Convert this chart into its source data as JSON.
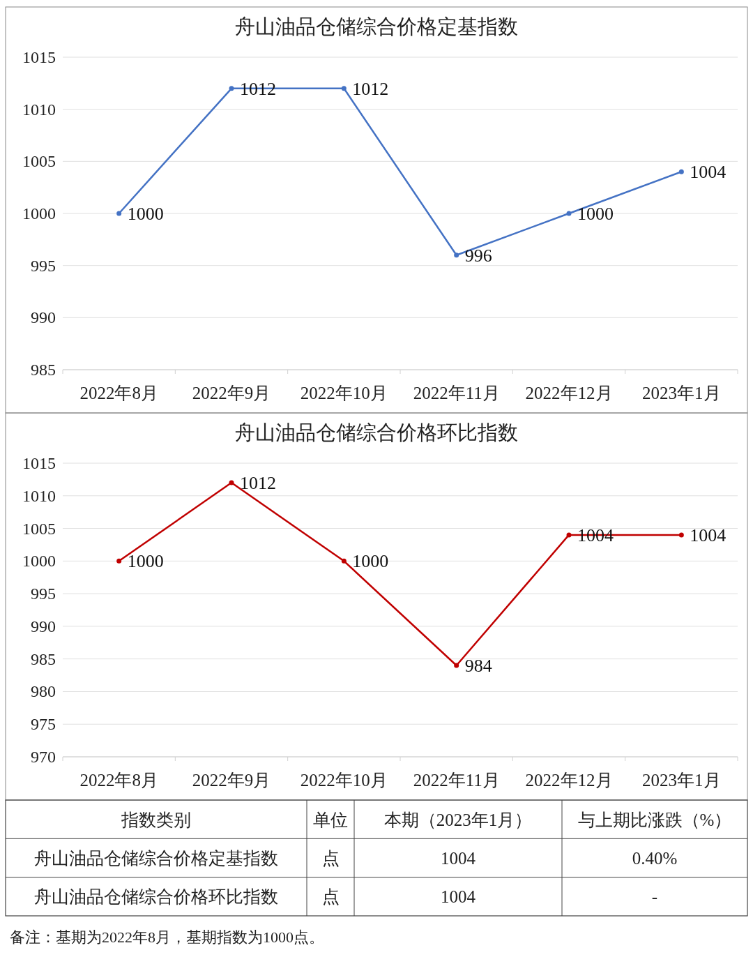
{
  "chart_data": [
    {
      "type": "line",
      "title": "舟山油品仓储综合价格定基指数",
      "categories": [
        "2022年8月",
        "2022年9月",
        "2022年10月",
        "2022年11月",
        "2022年12月",
        "2023年1月"
      ],
      "series": [
        {
          "color": "#4472c4",
          "values": [
            1000,
            1012,
            1012,
            996,
            1000,
            1004
          ]
        }
      ],
      "ylim": [
        985,
        1015
      ],
      "yticks": [
        985,
        990,
        995,
        1000,
        1005,
        1010,
        1015
      ],
      "grid": "y",
      "data_labels": true,
      "marker": "circle",
      "line_style": "solid"
    },
    {
      "type": "line",
      "title": "舟山油品仓储综合价格环比指数",
      "categories": [
        "2022年8月",
        "2022年9月",
        "2022年10月",
        "2022年11月",
        "2022年12月",
        "2023年1月"
      ],
      "series": [
        {
          "color": "#c00000",
          "values": [
            1000,
            1012,
            1000,
            984,
            1004,
            1004
          ]
        }
      ],
      "ylim": [
        970,
        1015
      ],
      "yticks": [
        970,
        975,
        980,
        985,
        990,
        995,
        1000,
        1005,
        1010,
        1015
      ],
      "grid": "y",
      "data_labels": true,
      "marker": "circle",
      "line_style": "solid"
    },
    {
      "type": "other",
      "categories": [
        "指数类别",
        "单位",
        "本期（2023年1月）",
        "与上期比涨跌（%）"
      ],
      "cell_labels": [
        [
          "舟山油品仓储综合价格定基指数",
          "点",
          "1004",
          "0.40%"
        ],
        [
          "舟山油品仓储综合价格环比指数",
          "点",
          "1004",
          "-"
        ]
      ],
      "annotations": [
        "备注：基期为2022年8月，基期指数为1000点。"
      ]
    }
  ]
}
